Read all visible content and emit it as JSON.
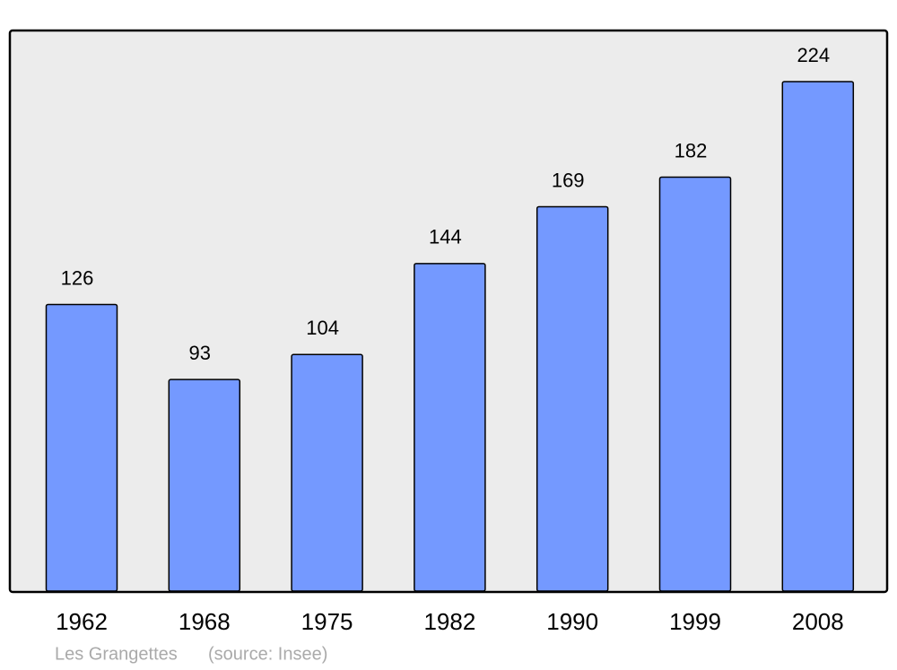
{
  "chart_data": {
    "type": "bar",
    "categories": [
      "1962",
      "1968",
      "1975",
      "1982",
      "1990",
      "1999",
      "2008"
    ],
    "values": [
      126,
      93,
      104,
      144,
      169,
      182,
      224
    ],
    "color": "#7499ff",
    "caption": "Les Grangettes",
    "source": "(source: Insee)"
  }
}
